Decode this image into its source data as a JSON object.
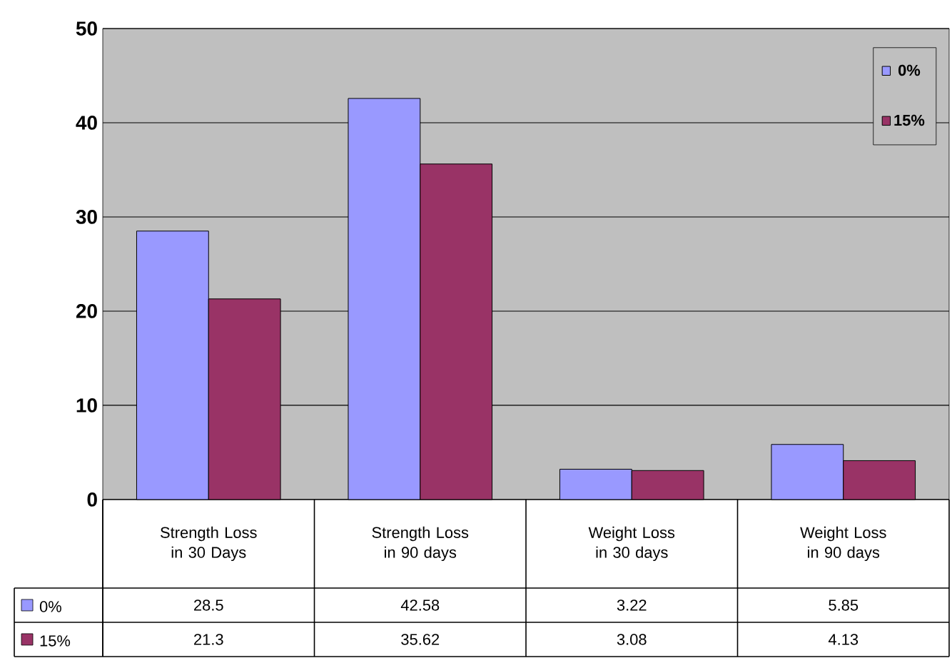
{
  "chart_data": {
    "type": "bar",
    "categories": [
      "Strength Loss in 30 Days",
      "Strength Loss in 90 days",
      "Weight Loss in 30 days",
      "Weight Loss in 90 days"
    ],
    "series": [
      {
        "name": "0%",
        "color": "#9999ff",
        "values": [
          28.5,
          42.58,
          3.22,
          5.85
        ]
      },
      {
        "name": "15%",
        "color": "#993366",
        "values": [
          21.3,
          35.62,
          3.08,
          4.13
        ]
      }
    ],
    "ylim": [
      0,
      50
    ],
    "yticks": [
      0,
      10,
      20,
      30,
      40,
      50
    ],
    "grid": "y",
    "legend": "top right",
    "data_labels": true
  }
}
